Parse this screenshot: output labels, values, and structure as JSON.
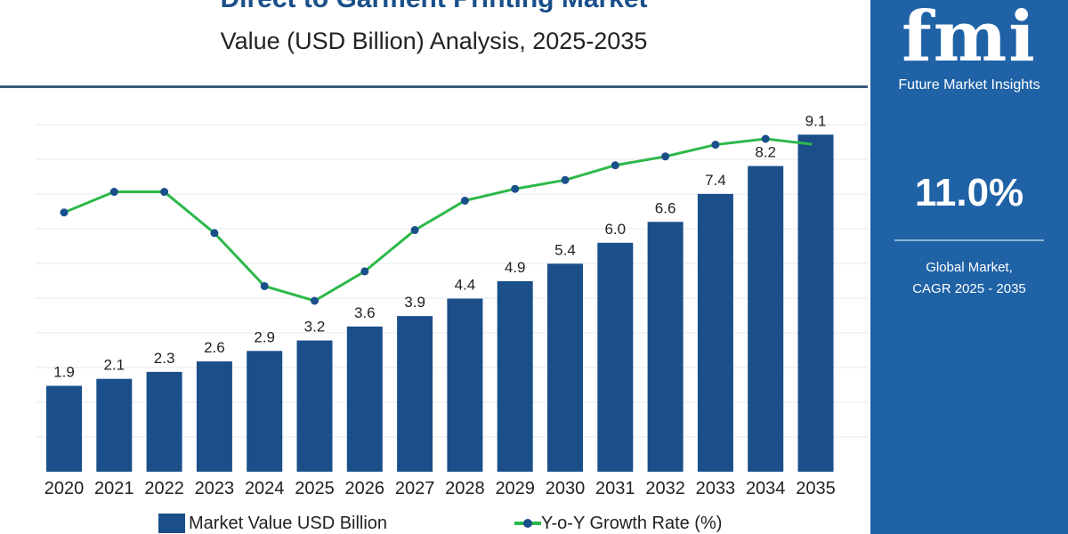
{
  "header": {
    "title": "Direct to Garment Printing Market",
    "subtitle": "Value (USD Billion) Analysis, 2025-2035"
  },
  "panel": {
    "logo": "fmi",
    "logo_text": "Future Market Insights",
    "cagr": "11.0%",
    "cagr_label_1": "Global Market,",
    "cagr_label_2": "CAGR 2025 - 2035"
  },
  "legend": {
    "bars": "Market Value USD Billion",
    "line": "Y-o-Y Growth Rate (%)"
  },
  "colors": {
    "bar": "#1a4f8a",
    "line": "#2db84a",
    "marker": "#1a4f8a",
    "panel": "#1f62a6"
  },
  "chart_data": {
    "type": "bar+line",
    "categories": [
      "2020",
      "2021",
      "2022",
      "2023",
      "2024",
      "2025",
      "2026",
      "2027",
      "2028",
      "2029",
      "2030",
      "2031",
      "2032",
      "2033",
      "2034",
      "2035"
    ],
    "series": [
      {
        "name": "Market Value USD Billion",
        "type": "bar",
        "values": [
          1.9,
          2.1,
          2.3,
          2.6,
          2.9,
          3.2,
          3.6,
          3.9,
          4.4,
          4.9,
          5.4,
          6.0,
          6.6,
          7.4,
          8.2,
          9.1
        ]
      },
      {
        "name": "Y-o-Y Growth Rate (%)",
        "type": "line",
        "values": [
          11.0,
          11.7,
          11.7,
          10.3,
          8.5,
          8.0,
          9.0,
          10.4,
          11.4,
          11.8,
          12.1,
          12.6,
          12.9,
          13.3,
          13.5,
          13.3
        ]
      }
    ],
    "grid": true,
    "legend_position": "bottom"
  }
}
